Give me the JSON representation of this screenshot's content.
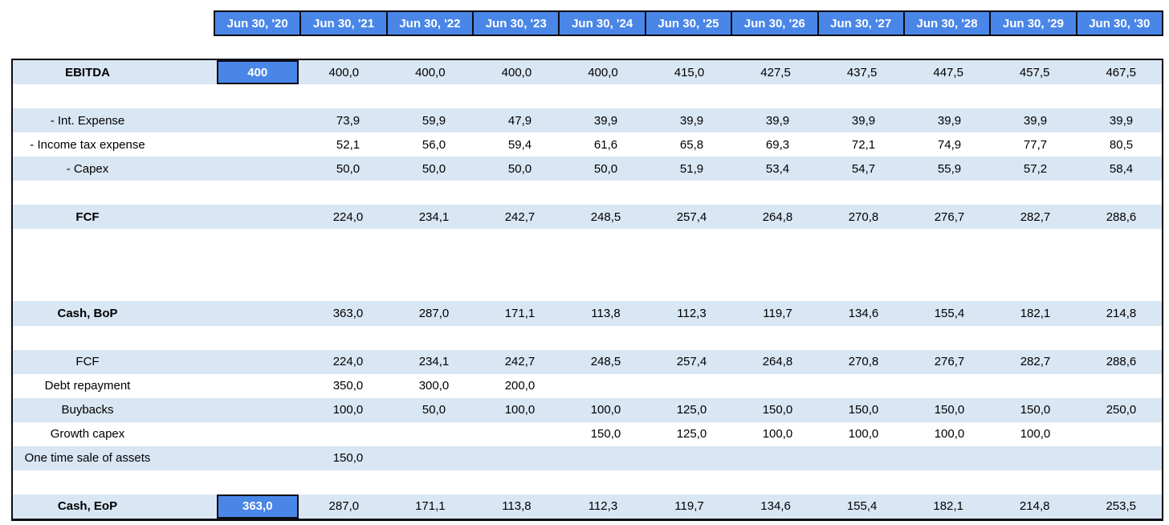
{
  "sheet": {
    "column_headers": [
      "Jun 30, '20",
      "Jun 30, '21",
      "Jun 30, '22",
      "Jun 30, '23",
      "Jun 30, '24",
      "Jun 30, '25",
      "Jun 30, '26",
      "Jun 30, '27",
      "Jun 30, '28",
      "Jun 30, '29",
      "Jun 30, '30"
    ],
    "rows": [
      {
        "name": "ebitda",
        "label": "EBITDA",
        "bold": true,
        "shaded": true,
        "chip": "400",
        "values": [
          "400,0",
          "400,0",
          "400,0",
          "400,0",
          "415,0",
          "427,5",
          "437,5",
          "447,5",
          "457,5",
          "467,5"
        ]
      },
      {
        "name": "spacer-1",
        "blank": true
      },
      {
        "name": "int-expense",
        "label": "- Int. Expense",
        "shaded": true,
        "values": [
          "73,9",
          "59,9",
          "47,9",
          "39,9",
          "39,9",
          "39,9",
          "39,9",
          "39,9",
          "39,9",
          "39,9"
        ]
      },
      {
        "name": "income-tax-expense",
        "label": "- Income tax expense",
        "values": [
          "52,1",
          "56,0",
          "59,4",
          "61,6",
          "65,8",
          "69,3",
          "72,1",
          "74,9",
          "77,7",
          "80,5"
        ]
      },
      {
        "name": "capex",
        "label": "- Capex",
        "shaded": true,
        "values": [
          "50,0",
          "50,0",
          "50,0",
          "50,0",
          "51,9",
          "53,4",
          "54,7",
          "55,9",
          "57,2",
          "58,4"
        ]
      },
      {
        "name": "spacer-2",
        "blank": true
      },
      {
        "name": "fcf",
        "label": "FCF",
        "bold": true,
        "shaded": true,
        "values": [
          "224,0",
          "234,1",
          "242,7",
          "248,5",
          "257,4",
          "264,8",
          "270,8",
          "276,7",
          "282,7",
          "288,6"
        ]
      },
      {
        "name": "spacer-3",
        "blank": true
      },
      {
        "name": "spacer-4",
        "blank": true
      },
      {
        "name": "spacer-5",
        "blank": true
      },
      {
        "name": "cash-bop",
        "label": "Cash, BoP",
        "bold": true,
        "shaded": true,
        "values": [
          "363,0",
          "287,0",
          "171,1",
          "113,8",
          "112,3",
          "119,7",
          "134,6",
          "155,4",
          "182,1",
          "214,8"
        ]
      },
      {
        "name": "spacer-6",
        "blank": true
      },
      {
        "name": "fcf-2",
        "label": "FCF",
        "shaded": true,
        "values": [
          "224,0",
          "234,1",
          "242,7",
          "248,5",
          "257,4",
          "264,8",
          "270,8",
          "276,7",
          "282,7",
          "288,6"
        ]
      },
      {
        "name": "debt-repayment",
        "label": "Debt repayment",
        "values": [
          "350,0",
          "300,0",
          "200,0",
          "",
          "",
          "",
          "",
          "",
          "",
          ""
        ]
      },
      {
        "name": "buybacks",
        "label": "Buybacks",
        "shaded": true,
        "values": [
          "100,0",
          "50,0",
          "100,0",
          "100,0",
          "125,0",
          "150,0",
          "150,0",
          "150,0",
          "150,0",
          "250,0"
        ]
      },
      {
        "name": "growth-capex",
        "label": "Growth capex",
        "values": [
          "",
          "",
          "",
          "150,0",
          "125,0",
          "100,0",
          "100,0",
          "100,0",
          "100,0",
          ""
        ]
      },
      {
        "name": "one-time-sale-of-assets",
        "label": "One time sale of assets",
        "shaded": true,
        "values": [
          "150,0",
          "",
          "",
          "",
          "",
          "",
          "",
          "",
          "",
          ""
        ]
      },
      {
        "name": "spacer-7",
        "blank": true
      },
      {
        "name": "cash-eop",
        "label": "Cash, EoP",
        "bold": true,
        "shaded": true,
        "chip": "363,0",
        "values": [
          "287,0",
          "171,1",
          "113,8",
          "112,3",
          "119,7",
          "134,6",
          "155,4",
          "182,1",
          "214,8",
          "253,5"
        ]
      }
    ]
  },
  "colors": {
    "accent_blue": "#4a86e8",
    "row_shade_blue": "#d9e6f3",
    "border_dark": "#0d0d16",
    "header_text": "#ffffff"
  }
}
